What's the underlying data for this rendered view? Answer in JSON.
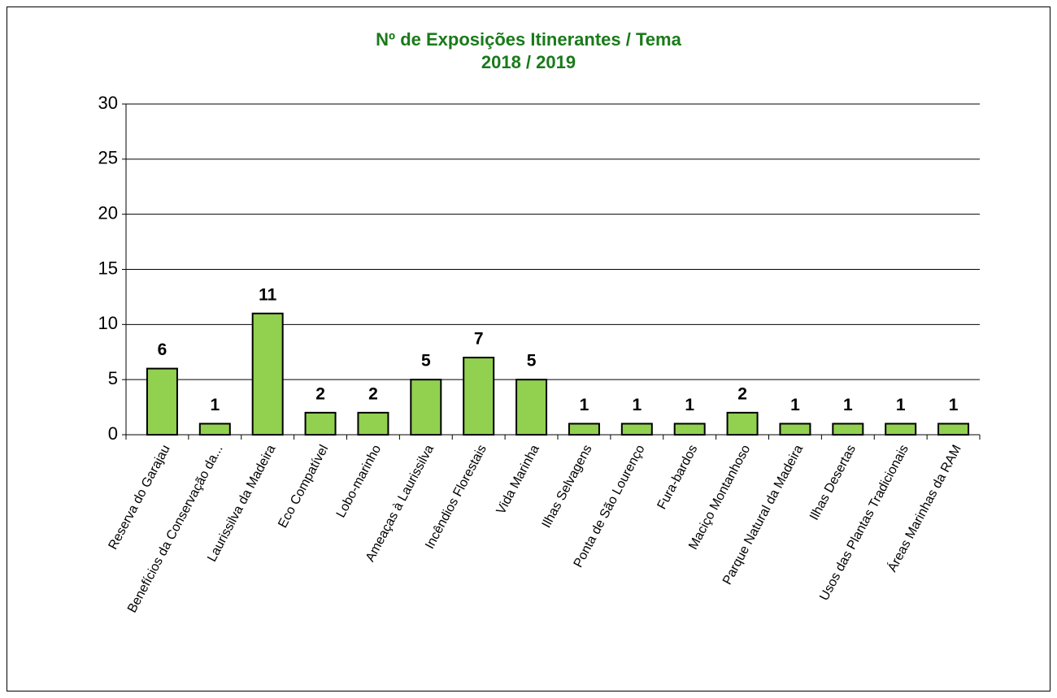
{
  "chart_data": {
    "type": "bar",
    "title": "Nº de Exposições Itinerantes / Tema",
    "subtitle": "2018 / 2019",
    "categories": [
      "Reserva do Garajau",
      "Benefícios da Conservação da...",
      "Laurissilva da Madeira",
      "Eco Compatível",
      "Lobo-marinho",
      "Ameaças à Laurissilva",
      "Incêndios Florestais",
      "Vida Marinha",
      "Ilhas Selvagens",
      "Ponta de São Lourenço",
      "Fura-bardos",
      "Maciço Montanhoso",
      "Parque Natural da Madeira",
      "Ilhas Desertas",
      "Usos das Plantas Tradicionais",
      "Áreas Marinhas da RAM"
    ],
    "values": [
      6,
      1,
      11,
      2,
      2,
      5,
      7,
      5,
      1,
      1,
      1,
      2,
      1,
      1,
      1,
      1
    ],
    "color": "#92d050",
    "ylim": [
      0,
      30
    ],
    "yticks": [
      0,
      5,
      10,
      15,
      20,
      25,
      30
    ],
    "grid": true
  }
}
